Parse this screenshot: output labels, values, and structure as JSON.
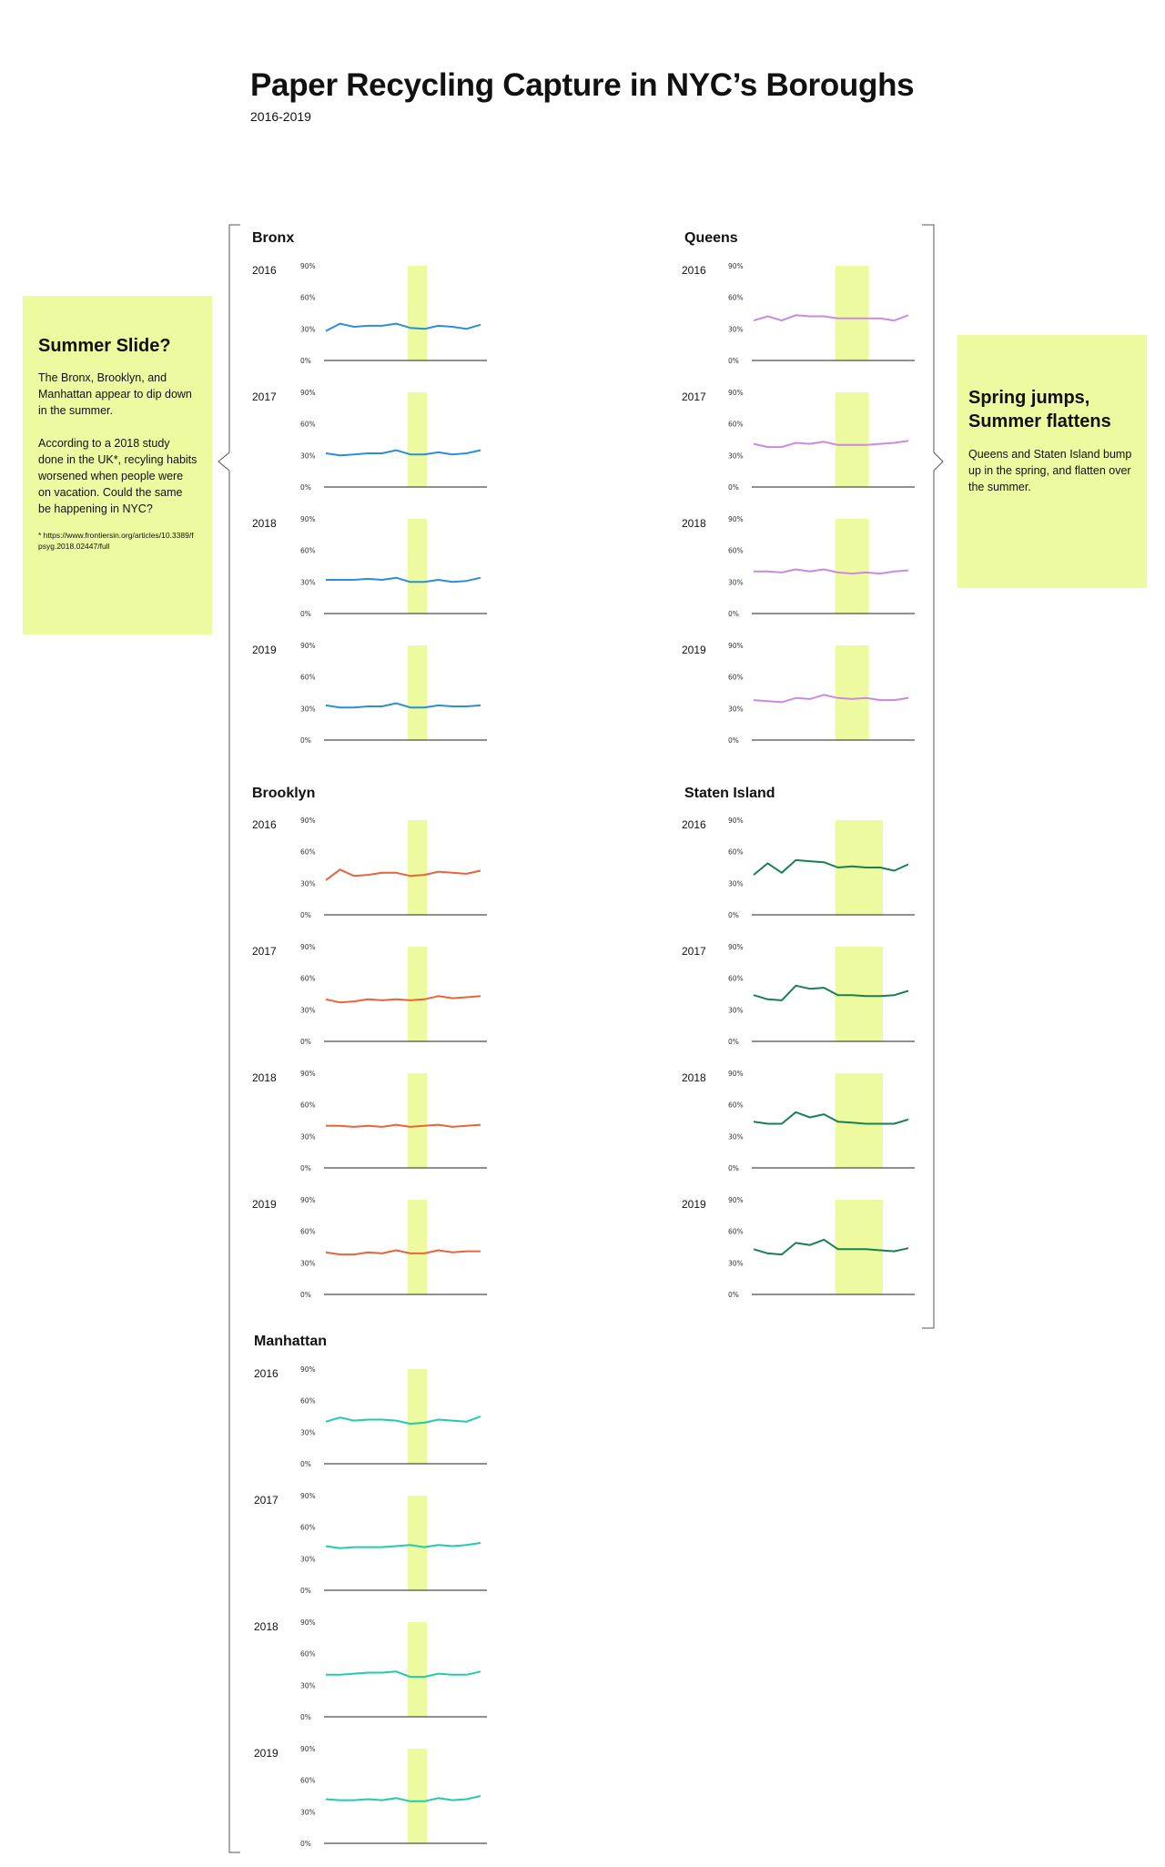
{
  "title": "Paper Recycling Capture in NYC’s Boroughs",
  "subtitle": "2016-2019",
  "left_note": {
    "heading": "Summer Slide?",
    "body1": "The Bronx, Brooklyn, and Manhattan appear to dip down in the summer.",
    "body2": "According to a 2018 study done in the UK*, recyling habits worsened when people were on vacation. Could the same be happening in NYC?",
    "footnote": "* https://www.frontiersin.org/articles/10.3389/fpsyg.2018.02447/full"
  },
  "right_note": {
    "heading": "Spring jumps, Summer flattens",
    "body": "Queens and Staten Island bump up in the spring, and flatten over the summer."
  },
  "colors": {
    "Bronx": "#2a8fd6",
    "Queens": "#c98be0",
    "Brooklyn": "#e8643c",
    "Staten Island": "#1a7f55",
    "Manhattan": "#22ccaa",
    "highlight": "#eefaa0",
    "axis": "#222222"
  },
  "chart_data": {
    "type": "line",
    "x": [
      1,
      2,
      3,
      4,
      5,
      6,
      7,
      8,
      9,
      10,
      11,
      12
    ],
    "ylim": [
      0,
      90
    ],
    "yticks": [
      "0%",
      "30%",
      "60%",
      "90%"
    ],
    "series": [
      {
        "name": "Bronx",
        "years": [
          {
            "year": "2016",
            "values": [
              28,
              35,
              32,
              33,
              33,
              35,
              31,
              30,
              33,
              32,
              30,
              34
            ],
            "highlight": [
              7,
              8
            ]
          },
          {
            "year": "2017",
            "values": [
              32,
              30,
              31,
              32,
              32,
              35,
              31,
              31,
              33,
              31,
              32,
              35
            ],
            "highlight": [
              7,
              8
            ]
          },
          {
            "year": "2018",
            "values": [
              32,
              32,
              32,
              33,
              32,
              34,
              30,
              30,
              32,
              30,
              31,
              34
            ],
            "highlight": [
              7,
              8
            ]
          },
          {
            "year": "2019",
            "values": [
              33,
              31,
              31,
              32,
              32,
              35,
              31,
              31,
              33,
              32,
              32,
              33
            ],
            "highlight": [
              7,
              8
            ]
          }
        ]
      },
      {
        "name": "Queens",
        "years": [
          {
            "year": "2016",
            "values": [
              38,
              42,
              38,
              43,
              42,
              42,
              40,
              40,
              40,
              40,
              38,
              43
            ],
            "highlight": [
              7,
              9
            ]
          },
          {
            "year": "2017",
            "values": [
              41,
              38,
              38,
              42,
              41,
              43,
              40,
              40,
              40,
              41,
              42,
              44
            ],
            "highlight": [
              7,
              9
            ]
          },
          {
            "year": "2018",
            "values": [
              40,
              40,
              39,
              42,
              40,
              42,
              39,
              38,
              39,
              38,
              40,
              41
            ],
            "highlight": [
              7,
              9
            ]
          },
          {
            "year": "2019",
            "values": [
              38,
              37,
              36,
              40,
              39,
              43,
              40,
              39,
              40,
              38,
              38,
              40
            ],
            "highlight": [
              7,
              9
            ]
          }
        ]
      },
      {
        "name": "Brooklyn",
        "years": [
          {
            "year": "2016",
            "values": [
              33,
              43,
              37,
              38,
              40,
              40,
              37,
              38,
              41,
              40,
              39,
              42
            ],
            "highlight": [
              7,
              8
            ]
          },
          {
            "year": "2017",
            "values": [
              40,
              37,
              38,
              40,
              39,
              40,
              39,
              40,
              43,
              41,
              42,
              43
            ],
            "highlight": [
              7,
              8
            ]
          },
          {
            "year": "2018",
            "values": [
              40,
              40,
              39,
              40,
              39,
              41,
              39,
              40,
              41,
              39,
              40,
              41
            ],
            "highlight": [
              7,
              8
            ]
          },
          {
            "year": "2019",
            "values": [
              40,
              38,
              38,
              40,
              39,
              42,
              39,
              39,
              42,
              40,
              41,
              41
            ],
            "highlight": [
              7,
              8
            ]
          }
        ]
      },
      {
        "name": "Staten Island",
        "years": [
          {
            "year": "2016",
            "values": [
              38,
              49,
              40,
              52,
              51,
              50,
              45,
              46,
              45,
              45,
              42,
              48
            ],
            "highlight": [
              7,
              10
            ]
          },
          {
            "year": "2017",
            "values": [
              44,
              40,
              39,
              53,
              50,
              51,
              44,
              44,
              43,
              43,
              44,
              48
            ],
            "highlight": [
              7,
              10
            ]
          },
          {
            "year": "2018",
            "values": [
              44,
              42,
              42,
              53,
              48,
              51,
              44,
              43,
              42,
              42,
              42,
              46
            ],
            "highlight": [
              7,
              10
            ]
          },
          {
            "year": "2019",
            "values": [
              43,
              39,
              38,
              49,
              47,
              52,
              43,
              43,
              43,
              42,
              41,
              44
            ],
            "highlight": [
              7,
              10
            ]
          }
        ]
      },
      {
        "name": "Manhattan",
        "years": [
          {
            "year": "2016",
            "values": [
              40,
              44,
              41,
              42,
              42,
              41,
              38,
              39,
              42,
              41,
              40,
              45
            ],
            "highlight": [
              7,
              8
            ]
          },
          {
            "year": "2017",
            "values": [
              42,
              40,
              41,
              41,
              41,
              42,
              43,
              41,
              43,
              42,
              43,
              45
            ],
            "highlight": [
              7,
              8
            ]
          },
          {
            "year": "2018",
            "values": [
              40,
              40,
              41,
              42,
              42,
              43,
              38,
              38,
              41,
              40,
              40,
              43
            ],
            "highlight": [
              7,
              8
            ]
          },
          {
            "year": "2019",
            "values": [
              42,
              41,
              41,
              42,
              41,
              43,
              40,
              40,
              43,
              41,
              42,
              45
            ],
            "highlight": [
              7,
              8
            ]
          }
        ]
      }
    ]
  }
}
